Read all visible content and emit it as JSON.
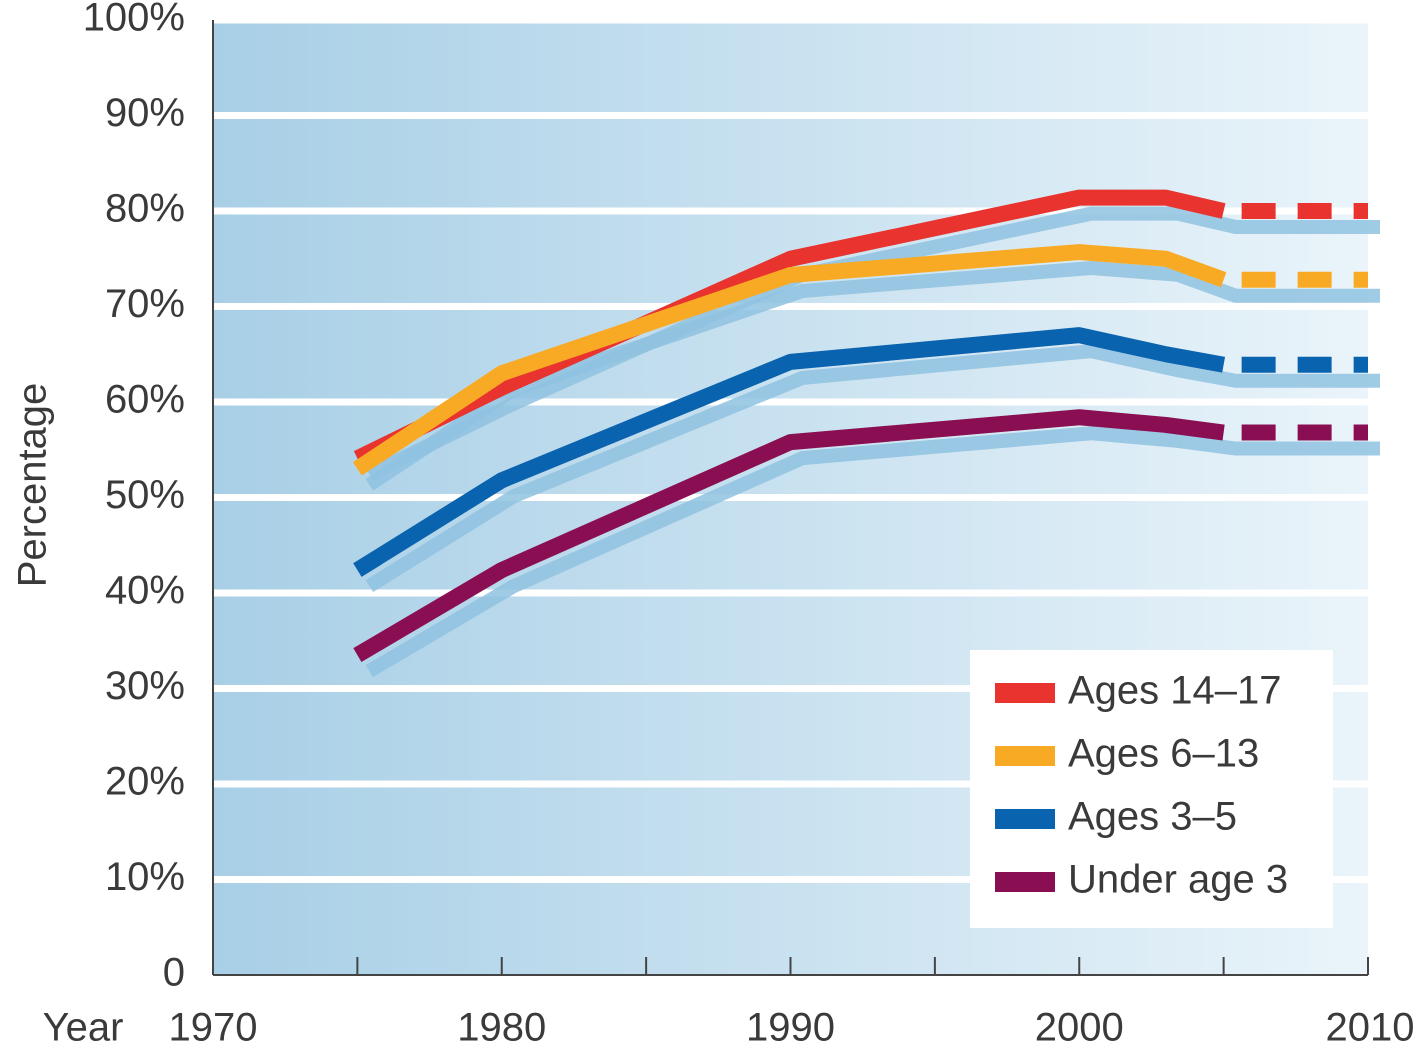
{
  "chart_data": {
    "type": "line",
    "y_label": "Percentage",
    "x_label": "Year",
    "x": [
      1975,
      1980,
      1990,
      2000,
      2003,
      2005,
      2010
    ],
    "dashed_after_x": 2005,
    "series": [
      {
        "name": "Ages 14–17",
        "color": "#e8332f",
        "values": [
          54.1,
          61.5,
          75,
          81.4,
          81.4,
          80,
          80
        ]
      },
      {
        "name": "Ages 6–13",
        "color": "#f9aa25",
        "values": [
          53,
          63,
          73.3,
          75.7,
          75,
          72.8,
          72.8
        ]
      },
      {
        "name": "Ages 3–5",
        "color": "#0a63ae",
        "values": [
          42.4,
          51.8,
          64.2,
          67,
          65,
          63.9,
          63.9
        ]
      },
      {
        "name": "Under age 3",
        "color": "#8a0f52",
        "values": [
          33.5,
          42.4,
          55.8,
          58.4,
          57.6,
          56.8,
          56.8
        ]
      }
    ],
    "xlim": [
      1970,
      2010
    ],
    "xticks": [
      1970,
      1980,
      1990,
      2000,
      2010
    ],
    "xminorticks": [
      1975,
      1985,
      1995,
      2005
    ],
    "ylim": [
      0,
      100
    ],
    "yticks": [
      0,
      {
        "value": 10,
        "label": "10%"
      },
      {
        "value": 20,
        "label": "20%"
      },
      {
        "value": 30,
        "label": "30%"
      },
      {
        "value": 40,
        "label": "40%"
      },
      {
        "value": 50,
        "label": "50%"
      },
      {
        "value": 60,
        "label": "60%"
      },
      {
        "value": 70,
        "label": "70%"
      },
      {
        "value": 80,
        "label": "80%"
      },
      {
        "value": 90,
        "label": "90%"
      },
      {
        "value": 100,
        "label": "100%"
      }
    ],
    "grid": true,
    "legend": "lower right"
  }
}
